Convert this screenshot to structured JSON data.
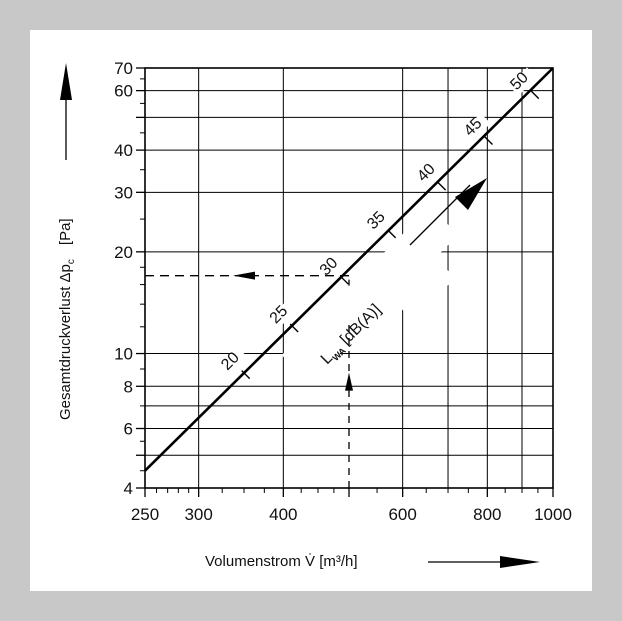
{
  "chart_data": {
    "type": "line",
    "xlabel": "Volumenstrom  V̇  [m³/h]",
    "ylabel": "Gesamtdruckverlust  Δp",
    "ylabel_sub": "c",
    "ylabel_unit": "[Pa]",
    "x_scale": "log",
    "y_scale": "log",
    "xlim": [
      250,
      1000
    ],
    "ylim": [
      4,
      70
    ],
    "x_ticks": [
      250,
      300,
      400,
      500,
      600,
      800,
      1000
    ],
    "x_tick_labels": [
      "250",
      "300",
      "400",
      "",
      "600",
      "800",
      "1000"
    ],
    "y_ticks": [
      4,
      5,
      6,
      8,
      10,
      20,
      30,
      40,
      50,
      60,
      70
    ],
    "y_tick_labels": [
      "4",
      "",
      "6",
      "8",
      "10",
      "20",
      "30",
      "40",
      "",
      "60",
      "70"
    ],
    "x_minor_ticks": [
      260,
      270,
      280,
      290,
      325,
      350,
      375,
      425,
      450,
      475,
      550,
      650,
      700,
      750,
      850,
      900,
      950
    ],
    "y_minor_ticks": [
      4.5,
      5.5,
      7,
      9,
      12,
      14,
      16,
      18,
      25,
      35,
      45,
      55,
      65
    ],
    "grid_x": [
      300,
      400,
      500,
      600,
      700,
      800,
      900,
      1000
    ],
    "grid_y": [
      5,
      6,
      7,
      8,
      10,
      20,
      30,
      40,
      50,
      60,
      70
    ],
    "grid": true,
    "series": [
      {
        "x": [
          250,
          1000
        ],
        "y": [
          4.5,
          70
        ]
      }
    ],
    "noise_level_label": "L",
    "noise_level_sub": "WA",
    "noise_level_unit": "[dB(A)]",
    "noise_marks": [
      {
        "label": "20",
        "x": 352,
        "y": 8.66
      },
      {
        "label": "25",
        "x": 415,
        "y": 11.9
      },
      {
        "label": "30",
        "x": 492,
        "y": 16.5
      },
      {
        "label": "35",
        "x": 578,
        "y": 22.6
      },
      {
        "label": "40",
        "x": 685,
        "y": 31.3
      },
      {
        "label": "45",
        "x": 803,
        "y": 42.7
      },
      {
        "label": "50",
        "x": 940,
        "y": 58.4
      }
    ],
    "reading_example": {
      "x": 500,
      "y": 17
    }
  }
}
